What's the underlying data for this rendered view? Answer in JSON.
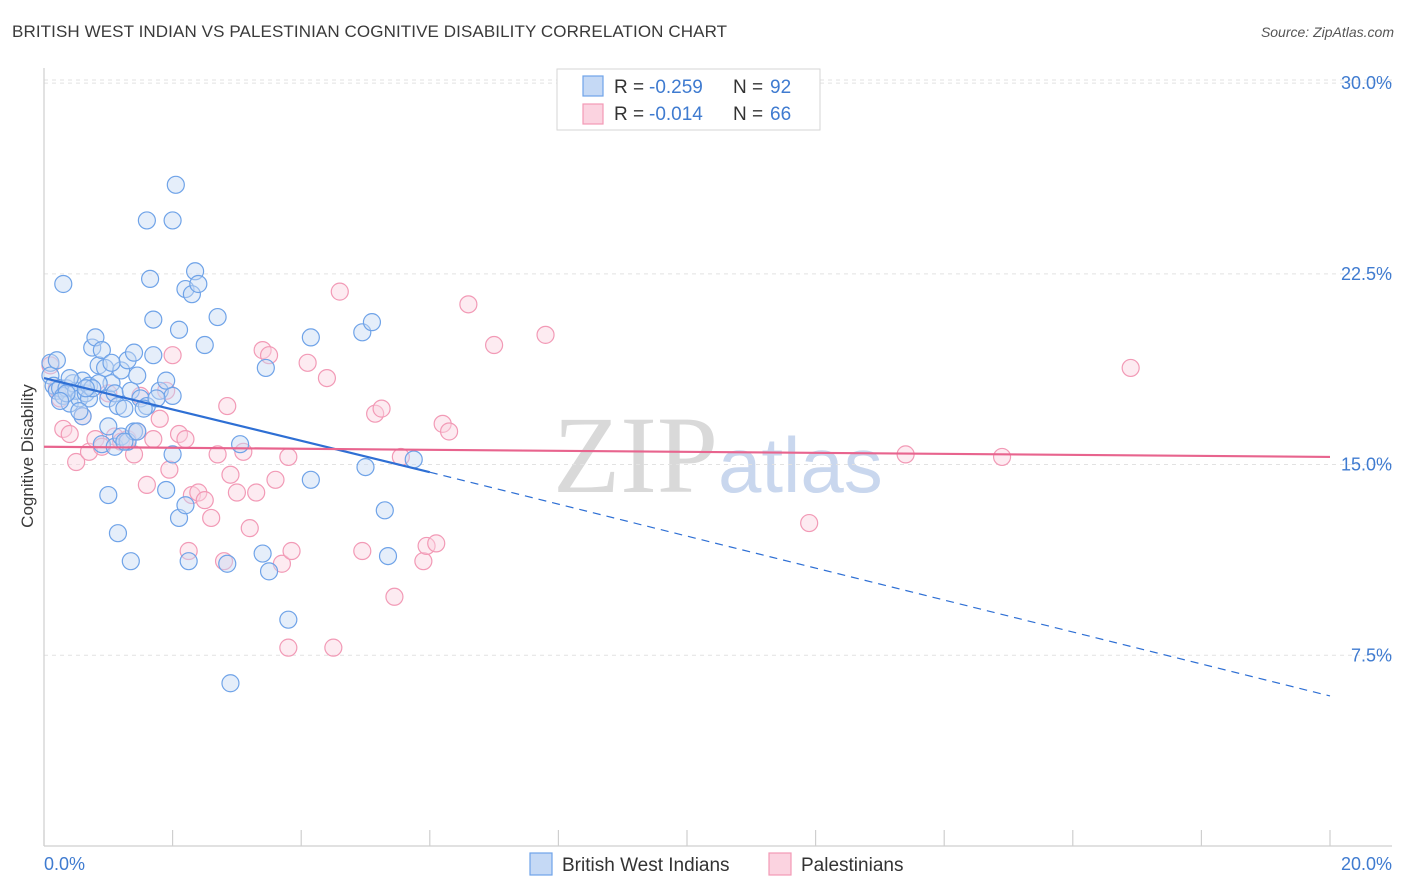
{
  "header": {
    "title": "BRITISH WEST INDIAN VS PALESTINIAN COGNITIVE DISABILITY CORRELATION CHART",
    "source": "Source: ZipAtlas.com"
  },
  "watermark": {
    "part1": "ZIP",
    "part2": "atlas"
  },
  "colors": {
    "blue": "#6fa3e8",
    "blue_line": "#2e6fd4",
    "pink": "#f29ab6",
    "pink_line": "#e8648e",
    "tick": "#3f7bd0"
  },
  "chart_data": {
    "type": "scatter",
    "title": "BRITISH WEST INDIAN VS PALESTINIAN COGNITIVE DISABILITY CORRELATION CHART",
    "xlabel": "",
    "ylabel": "Cognitive Disability",
    "xlim": [
      0,
      20
    ],
    "ylim": [
      0,
      31
    ],
    "y_ticks": [
      {
        "value": 7.5,
        "label": "7.5%"
      },
      {
        "value": 15.0,
        "label": "15.0%"
      },
      {
        "value": 22.5,
        "label": "22.5%"
      },
      {
        "value": 30.0,
        "label": "30.0%"
      }
    ],
    "x_tick_labels": [
      {
        "value": 0,
        "label": "0.0%"
      },
      {
        "value": 20,
        "label": "20.0%"
      }
    ],
    "legend": {
      "rows": [
        {
          "r_label": "R = ",
          "r_value": "-0.259",
          "n_label": "N = ",
          "n_value": "92"
        },
        {
          "r_label": "R = ",
          "r_value": "-0.014",
          "n_label": "N = ",
          "n_value": "66"
        }
      ]
    },
    "series": [
      {
        "name": "British West Indians",
        "trend": {
          "x0": 0.0,
          "y0": 18.4,
          "x1": 6.0,
          "y1": 14.7,
          "dash_x1": 20.0,
          "dash_y1": 5.9
        },
        "points": [
          [
            0.1,
            19.0
          ],
          [
            0.1,
            18.5
          ],
          [
            0.15,
            18.1
          ],
          [
            0.2,
            17.9
          ],
          [
            0.25,
            18.0
          ],
          [
            0.3,
            17.7
          ],
          [
            0.35,
            18.0
          ],
          [
            0.4,
            17.4
          ],
          [
            0.45,
            18.2
          ],
          [
            0.5,
            17.9
          ],
          [
            0.55,
            17.6
          ],
          [
            0.6,
            18.3
          ],
          [
            0.65,
            17.8
          ],
          [
            0.7,
            18.1
          ],
          [
            0.75,
            19.6
          ],
          [
            0.8,
            20.0
          ],
          [
            0.85,
            18.9
          ],
          [
            0.9,
            19.5
          ],
          [
            0.95,
            18.8
          ],
          [
            1.0,
            17.6
          ],
          [
            1.05,
            18.2
          ],
          [
            1.1,
            17.8
          ],
          [
            1.15,
            17.3
          ],
          [
            1.2,
            18.7
          ],
          [
            1.25,
            17.2
          ],
          [
            1.3,
            19.1
          ],
          [
            1.35,
            17.9
          ],
          [
            1.4,
            19.4
          ],
          [
            1.45,
            18.5
          ],
          [
            1.5,
            17.6
          ],
          [
            1.6,
            17.3
          ],
          [
            1.7,
            19.3
          ],
          [
            1.8,
            17.9
          ],
          [
            1.9,
            18.3
          ],
          [
            2.0,
            17.7
          ],
          [
            0.3,
            22.1
          ],
          [
            1.6,
            24.6
          ],
          [
            1.65,
            22.3
          ],
          [
            1.7,
            20.7
          ],
          [
            2.0,
            24.6
          ],
          [
            2.05,
            26.0
          ],
          [
            2.1,
            20.3
          ],
          [
            2.2,
            21.9
          ],
          [
            2.3,
            21.7
          ],
          [
            2.35,
            22.6
          ],
          [
            2.4,
            22.1
          ],
          [
            2.5,
            19.7
          ],
          [
            2.7,
            20.8
          ],
          [
            1.0,
            13.8
          ],
          [
            1.15,
            12.3
          ],
          [
            1.35,
            11.2
          ],
          [
            1.9,
            14.0
          ],
          [
            2.1,
            12.9
          ],
          [
            2.2,
            13.4
          ],
          [
            2.25,
            11.2
          ],
          [
            2.85,
            11.1
          ],
          [
            3.05,
            15.8
          ],
          [
            3.4,
            11.5
          ],
          [
            3.5,
            10.8
          ],
          [
            3.8,
            8.9
          ],
          [
            2.9,
            6.4
          ],
          [
            3.45,
            18.8
          ],
          [
            4.15,
            20.0
          ],
          [
            4.95,
            20.2
          ],
          [
            5.1,
            20.6
          ],
          [
            5.0,
            14.9
          ],
          [
            5.3,
            13.2
          ],
          [
            5.35,
            11.4
          ],
          [
            5.75,
            15.2
          ],
          [
            4.15,
            14.4
          ],
          [
            2.0,
            15.4
          ],
          [
            0.6,
            16.9
          ],
          [
            0.9,
            15.8
          ],
          [
            1.0,
            16.5
          ],
          [
            1.1,
            15.7
          ],
          [
            1.2,
            16.1
          ],
          [
            1.3,
            15.9
          ],
          [
            1.4,
            16.3
          ],
          [
            0.4,
            18.4
          ],
          [
            0.2,
            19.1
          ],
          [
            0.7,
            17.6
          ],
          [
            1.25,
            15.9
          ],
          [
            0.55,
            17.1
          ],
          [
            0.85,
            18.2
          ],
          [
            1.75,
            17.6
          ],
          [
            1.55,
            17.2
          ],
          [
            0.35,
            17.8
          ],
          [
            1.45,
            16.3
          ],
          [
            0.75,
            18.0
          ],
          [
            0.25,
            17.5
          ],
          [
            1.05,
            19.0
          ],
          [
            0.65,
            18.0
          ]
        ]
      },
      {
        "name": "Palestinians",
        "trend": {
          "x0": 0.0,
          "y0": 15.7,
          "x1": 20.0,
          "y1": 15.3
        },
        "points": [
          [
            0.1,
            18.9
          ],
          [
            0.2,
            18.0
          ],
          [
            0.25,
            17.6
          ],
          [
            0.3,
            16.4
          ],
          [
            0.4,
            16.2
          ],
          [
            0.5,
            15.1
          ],
          [
            0.6,
            16.9
          ],
          [
            0.7,
            15.5
          ],
          [
            0.8,
            16.0
          ],
          [
            0.9,
            15.7
          ],
          [
            1.0,
            17.8
          ],
          [
            1.1,
            16.1
          ],
          [
            1.2,
            15.9
          ],
          [
            1.3,
            16.0
          ],
          [
            1.4,
            15.4
          ],
          [
            1.5,
            17.7
          ],
          [
            1.6,
            14.2
          ],
          [
            1.7,
            16.0
          ],
          [
            1.8,
            16.8
          ],
          [
            1.9,
            17.9
          ],
          [
            1.95,
            14.8
          ],
          [
            2.0,
            19.3
          ],
          [
            2.1,
            16.2
          ],
          [
            2.2,
            16.0
          ],
          [
            2.25,
            11.6
          ],
          [
            2.3,
            13.8
          ],
          [
            2.4,
            13.9
          ],
          [
            2.5,
            13.6
          ],
          [
            2.6,
            12.9
          ],
          [
            2.7,
            15.4
          ],
          [
            2.8,
            11.2
          ],
          [
            2.85,
            17.3
          ],
          [
            2.9,
            14.6
          ],
          [
            3.0,
            13.9
          ],
          [
            3.1,
            15.5
          ],
          [
            3.2,
            12.5
          ],
          [
            3.3,
            13.9
          ],
          [
            3.4,
            19.5
          ],
          [
            3.5,
            19.3
          ],
          [
            3.6,
            14.4
          ],
          [
            3.7,
            11.1
          ],
          [
            3.8,
            15.3
          ],
          [
            3.85,
            11.6
          ],
          [
            3.8,
            7.8
          ],
          [
            4.1,
            19.0
          ],
          [
            4.4,
            18.4
          ],
          [
            4.5,
            7.8
          ],
          [
            4.6,
            21.8
          ],
          [
            4.95,
            11.6
          ],
          [
            5.15,
            17.0
          ],
          [
            5.25,
            17.2
          ],
          [
            5.45,
            9.8
          ],
          [
            5.55,
            15.3
          ],
          [
            5.9,
            11.2
          ],
          [
            5.95,
            11.8
          ],
          [
            6.1,
            11.9
          ],
          [
            6.2,
            16.6
          ],
          [
            6.3,
            16.3
          ],
          [
            6.6,
            21.3
          ],
          [
            7.0,
            19.7
          ],
          [
            7.8,
            20.1
          ],
          [
            11.9,
            12.7
          ],
          [
            13.4,
            15.4
          ],
          [
            14.9,
            15.3
          ],
          [
            16.9,
            18.8
          ],
          [
            1.45,
            16.3
          ]
        ]
      }
    ],
    "bottom_legend": [
      "British West Indians",
      "Palestinians"
    ]
  }
}
